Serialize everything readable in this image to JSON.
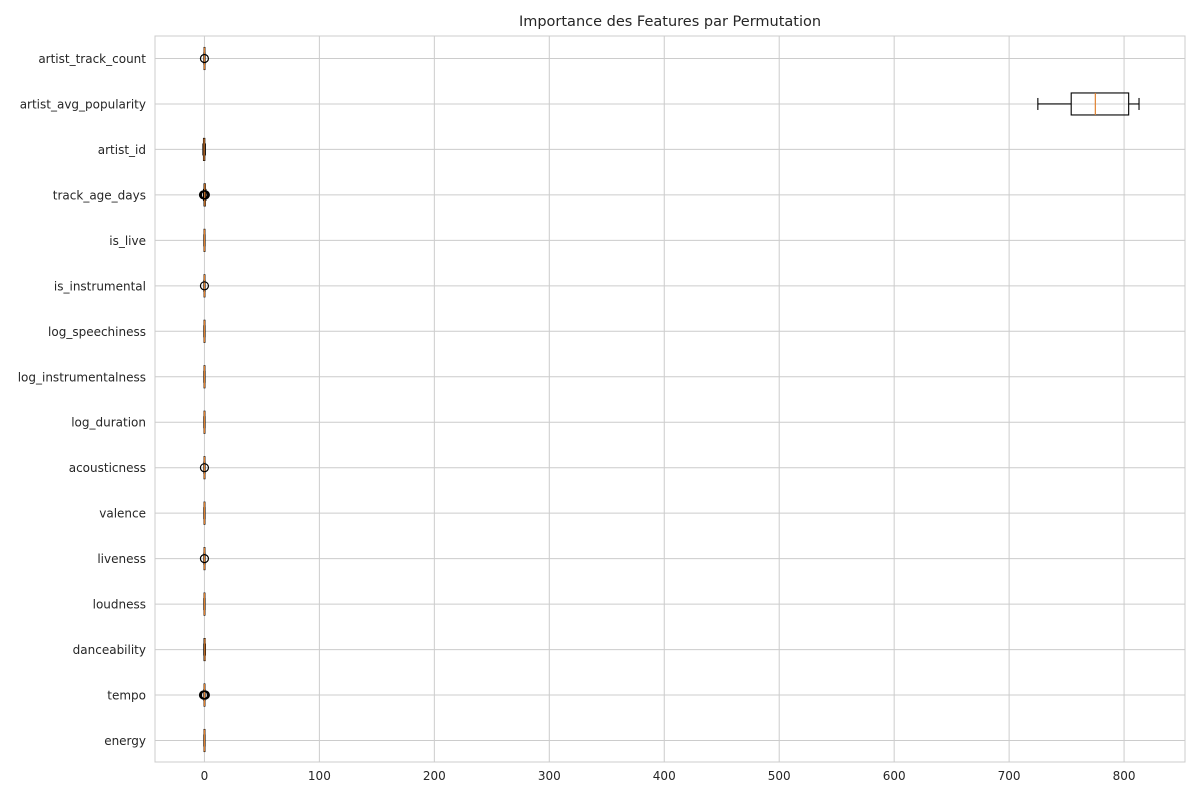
{
  "chart_data": {
    "type": "boxplot",
    "title": "Importance des Features par Permutation",
    "xlabel": "",
    "ylabel": "",
    "xlim": [
      -43,
      853
    ],
    "xticks": [
      0,
      100,
      200,
      300,
      400,
      500,
      600,
      700,
      800
    ],
    "grid": true,
    "orientation": "horizontal",
    "categories": [
      "artist_track_count",
      "artist_avg_popularity",
      "artist_id",
      "track_age_days",
      "is_live",
      "is_instrumental",
      "log_speechiness",
      "log_instrumentalness",
      "log_duration",
      "acousticness",
      "valence",
      "liveness",
      "loudness",
      "danceability",
      "tempo",
      "energy"
    ],
    "boxes": [
      {
        "whislo": -0.5,
        "q1": -0.3,
        "med": 0,
        "q3": 0.3,
        "whishi": 0.5,
        "fliers": [
          0
        ]
      },
      {
        "whislo": 725,
        "q1": 754,
        "med": 775,
        "q3": 804,
        "whishi": 813,
        "fliers": []
      },
      {
        "whislo": -1.3,
        "q1": -0.8,
        "med": -0.3,
        "q3": 0.3,
        "whishi": 0.8,
        "fliers": []
      },
      {
        "whislo": -0.8,
        "q1": -0.3,
        "med": 0.3,
        "q3": 0.8,
        "whishi": 1.3,
        "fliers": [
          -0.8,
          0,
          0.8
        ]
      },
      {
        "whislo": -0.5,
        "q1": -0.3,
        "med": 0,
        "q3": 0.3,
        "whishi": 0.5,
        "fliers": []
      },
      {
        "whislo": -0.5,
        "q1": -0.3,
        "med": 0,
        "q3": 0.3,
        "whishi": 0.5,
        "fliers": [
          0
        ]
      },
      {
        "whislo": -0.5,
        "q1": -0.3,
        "med": 0,
        "q3": 0.3,
        "whishi": 0.5,
        "fliers": []
      },
      {
        "whislo": -0.5,
        "q1": -0.3,
        "med": 0,
        "q3": 0.3,
        "whishi": 0.5,
        "fliers": []
      },
      {
        "whislo": -0.5,
        "q1": -0.3,
        "med": 0,
        "q3": 0.3,
        "whishi": 0.5,
        "fliers": []
      },
      {
        "whislo": -0.5,
        "q1": -0.3,
        "med": 0,
        "q3": 0.3,
        "whishi": 0.5,
        "fliers": [
          0
        ]
      },
      {
        "whislo": -0.5,
        "q1": -0.3,
        "med": 0,
        "q3": 0.3,
        "whishi": 0.5,
        "fliers": []
      },
      {
        "whislo": -0.5,
        "q1": -0.3,
        "med": 0,
        "q3": 0.3,
        "whishi": 0.5,
        "fliers": [
          0
        ]
      },
      {
        "whislo": -0.5,
        "q1": -0.3,
        "med": 0,
        "q3": 0.3,
        "whishi": 0.5,
        "fliers": []
      },
      {
        "whislo": -0.5,
        "q1": -0.3,
        "med": 0.3,
        "q3": 0.6,
        "whishi": 0.9,
        "fliers": []
      },
      {
        "whislo": -0.5,
        "q1": -0.3,
        "med": 0,
        "q3": 0.3,
        "whishi": 0.5,
        "fliers": [
          -0.8,
          0,
          0.8
        ]
      },
      {
        "whislo": -0.5,
        "q1": -0.3,
        "med": 0,
        "q3": 0.3,
        "whishi": 0.5,
        "fliers": []
      }
    ]
  },
  "colors": {
    "box": "#000000",
    "median": "#e0812f",
    "grid": "#cccccc",
    "text": "#262626"
  }
}
